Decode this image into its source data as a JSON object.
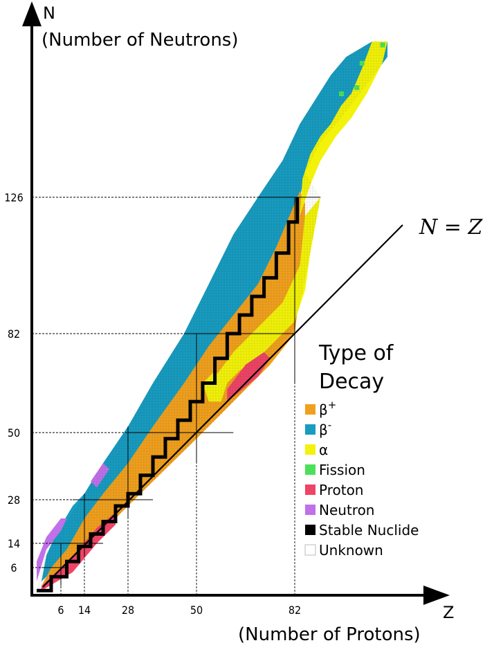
{
  "chart_data": {
    "type": "heatmap",
    "title": "",
    "x_axis": {
      "letter": "Z",
      "label": "(Number of Protons)",
      "ticks": [
        6,
        14,
        28,
        50,
        82
      ],
      "range": [
        0,
        118
      ]
    },
    "y_axis": {
      "letter": "N",
      "label": "(Number of Neutrons)",
      "ticks": [
        6,
        14,
        28,
        50,
        82,
        126
      ],
      "range": [
        0,
        177
      ]
    },
    "reference_line": {
      "label": "N = Z",
      "slope": 1
    },
    "magic_number_lines": [
      6,
      14,
      28,
      50,
      82,
      126
    ],
    "legend": {
      "title_line1": "Type of",
      "title_line2": "Decay",
      "placement": "right-middle",
      "items": [
        {
          "key": "beta_plus",
          "label": "β+",
          "base": "β",
          "sup": "+",
          "color": "#f0a01e"
        },
        {
          "key": "beta_minus",
          "label": "β-",
          "base": "β",
          "sup": "-",
          "color": "#189cc0"
        },
        {
          "key": "alpha",
          "label": "α",
          "base": "α",
          "sup": "",
          "color": "#f2f20a"
        },
        {
          "key": "fission",
          "label": "Fission",
          "base": "Fission",
          "sup": "",
          "color": "#4ce05a"
        },
        {
          "key": "proton",
          "label": "Proton",
          "base": "Proton",
          "sup": "",
          "color": "#ee4466"
        },
        {
          "key": "neutron",
          "label": "Neutron",
          "base": "Neutron",
          "sup": "",
          "color": "#c070e8"
        },
        {
          "key": "stable",
          "label": "Stable Nuclide",
          "base": "Stable Nuclide",
          "sup": "",
          "color": "#000000"
        },
        {
          "key": "unknown",
          "label": "Unknown",
          "base": "Unknown",
          "sup": "",
          "color": "#ffffff"
        }
      ]
    }
  }
}
